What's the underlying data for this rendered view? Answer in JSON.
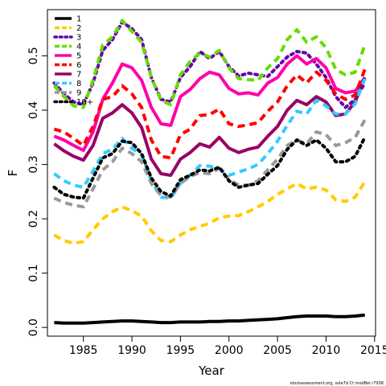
{
  "chart_data": {
    "type": "line",
    "title": "",
    "xlabel": "Year",
    "ylabel": "F",
    "xlim": [
      1981.3,
      2015.1
    ],
    "ylim": [
      -0.016,
      0.585
    ],
    "x_ticks": [
      1985,
      1990,
      1995,
      2000,
      2005,
      2010,
      2015
    ],
    "y_ticks": [
      0.0,
      0.1,
      0.2,
      0.3,
      0.4,
      0.5
    ],
    "y_tick_labels": [
      "0.0",
      "0.1",
      "0.2",
      "0.3",
      "0.4",
      "0.5"
    ],
    "grid": false,
    "legend_position": "top-left",
    "footnote": "stockassessment.org, sole7d Ct modBel r7938",
    "x": [
      1982,
      1983,
      1984,
      1985,
      1986,
      1987,
      1988,
      1989,
      1990,
      1991,
      1992,
      1993,
      1994,
      1995,
      1996,
      1997,
      1998,
      1999,
      2000,
      2001,
      2002,
      2003,
      2004,
      2005,
      2006,
      2007,
      2008,
      2009,
      2010,
      2011,
      2012,
      2013,
      2014
    ],
    "series": [
      {
        "name": "1",
        "color": "#000000",
        "dash": "solid",
        "values": [
          0.009,
          0.008,
          0.008,
          0.008,
          0.009,
          0.01,
          0.011,
          0.012,
          0.012,
          0.011,
          0.01,
          0.009,
          0.009,
          0.01,
          0.01,
          0.01,
          0.011,
          0.011,
          0.012,
          0.012,
          0.013,
          0.014,
          0.015,
          0.016,
          0.018,
          0.02,
          0.021,
          0.021,
          0.021,
          0.02,
          0.02,
          0.021,
          0.023
        ]
      },
      {
        "name": "2",
        "color": "#ffcc00",
        "dash": "dashed",
        "values": [
          0.17,
          0.16,
          0.155,
          0.158,
          0.18,
          0.2,
          0.213,
          0.222,
          0.215,
          0.205,
          0.178,
          0.16,
          0.158,
          0.17,
          0.18,
          0.186,
          0.192,
          0.202,
          0.205,
          0.206,
          0.213,
          0.222,
          0.232,
          0.245,
          0.255,
          0.265,
          0.255,
          0.258,
          0.253,
          0.235,
          0.232,
          0.24,
          0.268
        ]
      },
      {
        "name": "3",
        "color": "#6600aa",
        "dash": "dotted",
        "values": [
          0.45,
          0.43,
          0.415,
          0.41,
          0.45,
          0.51,
          0.53,
          0.562,
          0.55,
          0.53,
          0.46,
          0.42,
          0.415,
          0.46,
          0.48,
          0.508,
          0.495,
          0.508,
          0.48,
          0.463,
          0.468,
          0.465,
          0.462,
          0.48,
          0.498,
          0.508,
          0.505,
          0.485,
          0.46,
          0.425,
          0.405,
          0.42,
          0.45
        ]
      },
      {
        "name": "4",
        "color": "#66dd00",
        "dash": "dashed",
        "values": [
          0.445,
          0.425,
          0.408,
          0.405,
          0.455,
          0.52,
          0.535,
          0.565,
          0.545,
          0.525,
          0.46,
          0.418,
          0.41,
          0.465,
          0.49,
          0.505,
          0.498,
          0.51,
          0.478,
          0.458,
          0.456,
          0.455,
          0.478,
          0.495,
          0.53,
          0.548,
          0.525,
          0.535,
          0.515,
          0.475,
          0.465,
          0.47,
          0.52
        ]
      },
      {
        "name": "5",
        "color": "#ff00aa",
        "dash": "solid",
        "values": [
          0.352,
          0.345,
          0.335,
          0.326,
          0.36,
          0.42,
          0.45,
          0.485,
          0.478,
          0.455,
          0.405,
          0.375,
          0.372,
          0.425,
          0.438,
          0.458,
          0.47,
          0.465,
          0.44,
          0.43,
          0.432,
          0.428,
          0.45,
          0.46,
          0.485,
          0.5,
          0.485,
          0.495,
          0.478,
          0.44,
          0.432,
          0.435,
          0.46
        ]
      },
      {
        "name": "6",
        "color": "#ff0000",
        "dash": "dashed",
        "values": [
          0.365,
          0.36,
          0.348,
          0.335,
          0.37,
          0.42,
          0.425,
          0.445,
          0.43,
          0.405,
          0.345,
          0.315,
          0.312,
          0.355,
          0.365,
          0.39,
          0.392,
          0.402,
          0.375,
          0.37,
          0.373,
          0.377,
          0.398,
          0.415,
          0.445,
          0.465,
          0.45,
          0.47,
          0.455,
          0.43,
          0.42,
          0.428,
          0.475
        ]
      },
      {
        "name": "7",
        "color": "#990066",
        "dash": "solid",
        "values": [
          0.338,
          0.325,
          0.315,
          0.308,
          0.335,
          0.385,
          0.395,
          0.41,
          0.395,
          0.368,
          0.31,
          0.283,
          0.28,
          0.31,
          0.322,
          0.338,
          0.332,
          0.35,
          0.33,
          0.322,
          0.328,
          0.332,
          0.352,
          0.37,
          0.4,
          0.418,
          0.41,
          0.425,
          0.415,
          0.39,
          0.393,
          0.415,
          0.46
        ]
      },
      {
        "name": "8",
        "color": "#33ccff",
        "dash": "dashed",
        "values": [
          0.283,
          0.27,
          0.262,
          0.258,
          0.288,
          0.32,
          0.328,
          0.348,
          0.33,
          0.318,
          0.27,
          0.24,
          0.238,
          0.265,
          0.28,
          0.298,
          0.297,
          0.292,
          0.28,
          0.286,
          0.292,
          0.3,
          0.32,
          0.343,
          0.372,
          0.398,
          0.393,
          0.418,
          0.408,
          0.393,
          0.393,
          0.412,
          0.458
        ]
      },
      {
        "name": "9",
        "color": "#999999",
        "dash": "dashed",
        "values": [
          0.238,
          0.23,
          0.225,
          0.222,
          0.255,
          0.29,
          0.305,
          0.33,
          0.32,
          0.305,
          0.265,
          0.243,
          0.24,
          0.265,
          0.278,
          0.285,
          0.283,
          0.293,
          0.272,
          0.262,
          0.262,
          0.27,
          0.29,
          0.31,
          0.335,
          0.345,
          0.338,
          0.36,
          0.355,
          0.335,
          0.34,
          0.35,
          0.382
        ]
      },
      {
        "name": "10+",
        "color": "#000000",
        "dash": "dotted",
        "values": [
          0.258,
          0.245,
          0.24,
          0.238,
          0.275,
          0.312,
          0.32,
          0.343,
          0.34,
          0.32,
          0.275,
          0.25,
          0.242,
          0.272,
          0.28,
          0.29,
          0.288,
          0.295,
          0.27,
          0.258,
          0.262,
          0.265,
          0.282,
          0.298,
          0.328,
          0.345,
          0.335,
          0.345,
          0.33,
          0.305,
          0.305,
          0.315,
          0.35
        ]
      }
    ]
  }
}
